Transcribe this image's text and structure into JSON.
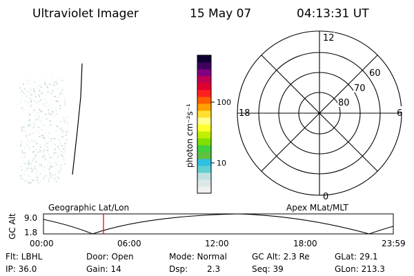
{
  "header": {
    "instrument": "Ultraviolet Imager",
    "date": "15 May 07",
    "time": "04:13:31 UT"
  },
  "colorbar": {
    "label": "photon cm⁻²s⁻¹",
    "tick_labels": [
      "100",
      "10"
    ],
    "colors": [
      "#f0f0f0",
      "#dce8e8",
      "#c0e0e0",
      "#60d0d0",
      "#30c0e0",
      "#60c040",
      "#40d040",
      "#80e000",
      "#c0f000",
      "#ffff30",
      "#ffff90",
      "#ffe030",
      "#ffa000",
      "#ff6000",
      "#ff2020",
      "#e00030",
      "#c00050",
      "#800080",
      "#400060",
      "#100030"
    ]
  },
  "polar_plot": {
    "mlt_labels": {
      "top": "12",
      "bottom": "0",
      "left": "18",
      "right": "6"
    },
    "lat_labels": [
      "60",
      "70",
      "80"
    ]
  },
  "timeline": {
    "y_axis_label": "GC Alt",
    "y_ticks": [
      "9.0",
      "1.8"
    ],
    "left_title": "Geographic Lat/Lon",
    "right_title": "Apex MLat/MLT",
    "x_ticks": [
      "00:00",
      "06:00",
      "12:00",
      "18:00",
      "23:59"
    ],
    "marker_color": "#ff0000"
  },
  "status": {
    "filter": "Flt: LBHL",
    "ip": "IP: 36.0",
    "door": "Door: Open",
    "gain": "Gain: 14",
    "mode": "Mode: Normal",
    "dsp_label": "Dsp:",
    "dsp_value": "2.3",
    "gc_alt": "GC Alt: 2.3 Re",
    "seq": "Seq: 39",
    "glat": "GLat: 29.1",
    "glon": "GLon: 213.3"
  }
}
